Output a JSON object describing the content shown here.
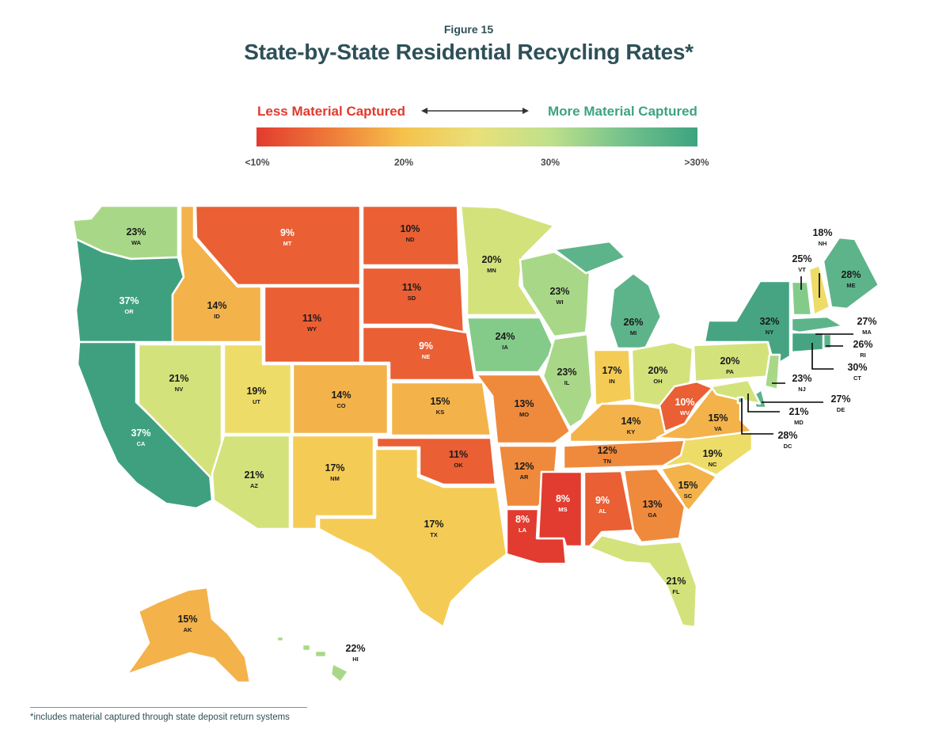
{
  "figure_label": "Figure 15",
  "title": "State-by-State Residential Recycling Rates*",
  "legend": {
    "left_label": "Less Material Captured",
    "right_label": "More Material Captured",
    "left_color": "#e03a2e",
    "right_color": "#3da380",
    "ticks": [
      "<10%",
      "20%",
      "30%",
      ">30%"
    ],
    "gradient_stops": [
      "#e23b2f",
      "#ee7a3a",
      "#f5c24c",
      "#e9e07a",
      "#bfe08b",
      "#74c28c",
      "#3da380"
    ]
  },
  "footnote": "*includes material captured through state deposit return systems",
  "states": [
    {
      "abbr": "WA",
      "name": "Washington",
      "rate": "23%",
      "value": 23
    },
    {
      "abbr": "OR",
      "name": "Oregon",
      "rate": "37%",
      "value": 37
    },
    {
      "abbr": "CA",
      "name": "California",
      "rate": "37%",
      "value": 37
    },
    {
      "abbr": "ID",
      "name": "Idaho",
      "rate": "14%",
      "value": 14
    },
    {
      "abbr": "NV",
      "name": "Nevada",
      "rate": "21%",
      "value": 21
    },
    {
      "abbr": "MT",
      "name": "Montana",
      "rate": "9%",
      "value": 9
    },
    {
      "abbr": "WY",
      "name": "Wyoming",
      "rate": "11%",
      "value": 11
    },
    {
      "abbr": "UT",
      "name": "Utah",
      "rate": "19%",
      "value": 19
    },
    {
      "abbr": "AZ",
      "name": "Arizona",
      "rate": "21%",
      "value": 21
    },
    {
      "abbr": "CO",
      "name": "Colorado",
      "rate": "14%",
      "value": 14
    },
    {
      "abbr": "NM",
      "name": "New Mexico",
      "rate": "17%",
      "value": 17
    },
    {
      "abbr": "ND",
      "name": "North Dakota",
      "rate": "10%",
      "value": 10
    },
    {
      "abbr": "SD",
      "name": "South Dakota",
      "rate": "11%",
      "value": 11
    },
    {
      "abbr": "NE",
      "name": "Nebraska",
      "rate": "9%",
      "value": 9
    },
    {
      "abbr": "KS",
      "name": "Kansas",
      "rate": "15%",
      "value": 15
    },
    {
      "abbr": "OK",
      "name": "Oklahoma",
      "rate": "11%",
      "value": 11
    },
    {
      "abbr": "TX",
      "name": "Texas",
      "rate": "17%",
      "value": 17
    },
    {
      "abbr": "MN",
      "name": "Minnesota",
      "rate": "20%",
      "value": 20
    },
    {
      "abbr": "IA",
      "name": "Iowa",
      "rate": "24%",
      "value": 24
    },
    {
      "abbr": "MO",
      "name": "Missouri",
      "rate": "13%",
      "value": 13
    },
    {
      "abbr": "AR",
      "name": "Arkansas",
      "rate": "12%",
      "value": 12
    },
    {
      "abbr": "LA",
      "name": "Louisiana",
      "rate": "8%",
      "value": 8
    },
    {
      "abbr": "WI",
      "name": "Wisconsin",
      "rate": "23%",
      "value": 23
    },
    {
      "abbr": "IL",
      "name": "Illinois",
      "rate": "23%",
      "value": 23
    },
    {
      "abbr": "MI",
      "name": "Michigan",
      "rate": "26%",
      "value": 26
    },
    {
      "abbr": "IN",
      "name": "Indiana",
      "rate": "17%",
      "value": 17
    },
    {
      "abbr": "OH",
      "name": "Ohio",
      "rate": "20%",
      "value": 20
    },
    {
      "abbr": "KY",
      "name": "Kentucky",
      "rate": "14%",
      "value": 14
    },
    {
      "abbr": "TN",
      "name": "Tennessee",
      "rate": "12%",
      "value": 12
    },
    {
      "abbr": "MS",
      "name": "Mississippi",
      "rate": "8%",
      "value": 8
    },
    {
      "abbr": "AL",
      "name": "Alabama",
      "rate": "9%",
      "value": 9
    },
    {
      "abbr": "GA",
      "name": "Georgia",
      "rate": "13%",
      "value": 13
    },
    {
      "abbr": "FL",
      "name": "Florida",
      "rate": "21%",
      "value": 21
    },
    {
      "abbr": "SC",
      "name": "South Carolina",
      "rate": "15%",
      "value": 15
    },
    {
      "abbr": "NC",
      "name": "North Carolina",
      "rate": "19%",
      "value": 19
    },
    {
      "abbr": "VA",
      "name": "Virginia",
      "rate": "15%",
      "value": 15
    },
    {
      "abbr": "WV",
      "name": "West Virginia",
      "rate": "10%",
      "value": 10
    },
    {
      "abbr": "PA",
      "name": "Pennsylvania",
      "rate": "20%",
      "value": 20
    },
    {
      "abbr": "NY",
      "name": "New York",
      "rate": "32%",
      "value": 32
    },
    {
      "abbr": "VT",
      "name": "Vermont",
      "rate": "25%",
      "value": 25
    },
    {
      "abbr": "NH",
      "name": "New Hampshire",
      "rate": "18%",
      "value": 18
    },
    {
      "abbr": "ME",
      "name": "Maine",
      "rate": "28%",
      "value": 28
    },
    {
      "abbr": "MA",
      "name": "Massachusetts",
      "rate": "27%",
      "value": 27
    },
    {
      "abbr": "RI",
      "name": "Rhode Island",
      "rate": "26%",
      "value": 26
    },
    {
      "abbr": "CT",
      "name": "Connecticut",
      "rate": "30%",
      "value": 30
    },
    {
      "abbr": "NJ",
      "name": "New Jersey",
      "rate": "23%",
      "value": 23
    },
    {
      "abbr": "DE",
      "name": "Delaware",
      "rate": "27%",
      "value": 27
    },
    {
      "abbr": "MD",
      "name": "Maryland",
      "rate": "21%",
      "value": 21
    },
    {
      "abbr": "DC",
      "name": "District of Columbia",
      "rate": "28%",
      "value": 28
    },
    {
      "abbr": "AK",
      "name": "Alaska",
      "rate": "15%",
      "value": 15
    },
    {
      "abbr": "HI",
      "name": "Hawaii",
      "rate": "22%",
      "value": 22
    }
  ]
}
